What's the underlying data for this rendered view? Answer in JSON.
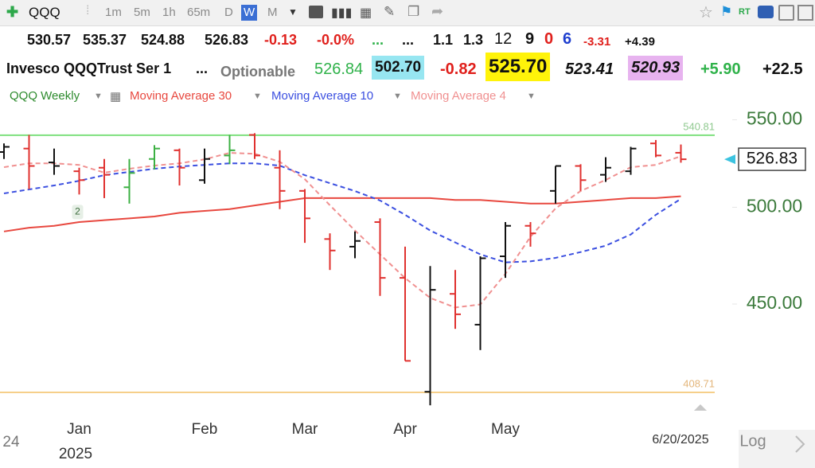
{
  "toolbar": {
    "symbol": "QQQ",
    "intervals": [
      "1m",
      "5m",
      "1h",
      "65m",
      "D",
      "W",
      "M"
    ]
  },
  "quote": {
    "row1": [
      "530.57",
      "535.37",
      "524.88",
      "526.83",
      "-0.13",
      "-0.0%",
      "...",
      "...",
      "1.1",
      "1.3",
      "12",
      "9",
      "0",
      "6",
      "-3.31",
      "+4.39"
    ],
    "row2": [
      "Invesco QQQTrust Ser 1",
      "...",
      "Optionable",
      "526.84",
      "502.70",
      "-0.82",
      "525.70",
      "523.41",
      "520.93",
      "+5.90",
      "+22.5"
    ]
  },
  "chart_data": {
    "type": "ohlc",
    "log_scale": true,
    "ylim": [
      401,
      555
    ],
    "yticks": [
      {
        "value": 450,
        "label": "450.00"
      },
      {
        "value": 500,
        "label": "500.00"
      },
      {
        "value": 550,
        "label": "550.00"
      }
    ],
    "categories": [
      null,
      null,
      null,
      "Jan",
      null,
      null,
      null,
      null,
      "Feb",
      null,
      null,
      null,
      "Mar",
      null,
      null,
      null,
      "Apr",
      null,
      null,
      null,
      "May",
      null,
      null,
      null,
      null,
      null,
      null,
      null
    ],
    "series": [
      {
        "name": "QQQ Weekly",
        "type": "ohlc",
        "color": "#2e8b2e",
        "open": [
          531,
          533,
          525,
          520,
          522,
          511,
          527,
          532,
          515,
          529,
          541,
          522,
          509,
          483,
          479,
          492,
          463,
          409,
          455,
          440,
          474,
          490,
          509,
          523,
          518,
          520,
          536,
          530.57
        ],
        "high": [
          536,
          541,
          533,
          522,
          527,
          527,
          535,
          533,
          533,
          541,
          542,
          532,
          510,
          486,
          487,
          494,
          479,
          469,
          467,
          474,
          492,
          492,
          523,
          524,
          528,
          534,
          538,
          535.37
        ],
        "low": [
          527,
          510,
          518,
          507,
          505,
          502,
          521,
          512,
          513,
          524,
          527,
          499,
          481,
          467,
          473,
          454,
          423,
          403,
          438,
          428,
          463,
          479,
          502,
          509,
          514,
          518,
          528,
          524.88
        ],
        "close": [
          534,
          523,
          523,
          515,
          518,
          519,
          533,
          522,
          527,
          532,
          529,
          509,
          494,
          477,
          482,
          463,
          423,
          457,
          445,
          473,
          490,
          486,
          523,
          515,
          522,
          533,
          529,
          526.83
        ],
        "colors": [
          "#111111",
          "#e0312f",
          "#111111",
          "#e0312f",
          "#e0312f",
          "#3cb043",
          "#3cb043",
          "#e0312f",
          "#111111",
          "#3cb043",
          "#e0312f",
          "#e0312f",
          "#e0312f",
          "#e0312f",
          "#111111",
          "#e0312f",
          "#e0312f",
          "#111111",
          "#e0312f",
          "#111111",
          "#111111",
          "#e0312f",
          "#111111",
          "#e0312f",
          "#111111",
          "#111111",
          "#e0312f",
          "#e0312f"
        ]
      },
      {
        "name": "Moving Average 30",
        "type": "line",
        "color": "#e8483f",
        "dash": false,
        "values": [
          487,
          489,
          490,
          492,
          493,
          494,
          495,
          497,
          498,
          499,
          501,
          503,
          505,
          505,
          505,
          505,
          505,
          505,
          504,
          504,
          503,
          502,
          502,
          503,
          504,
          505,
          505,
          506
        ]
      },
      {
        "name": "Moving Average 10",
        "type": "line",
        "color": "#3b4fe0",
        "dash": true,
        "values": [
          507.6,
          509.8,
          512,
          514.6,
          517.8,
          519.6,
          521.4,
          522.7,
          523.6,
          524.5,
          524.5,
          523.2,
          517.8,
          513.3,
          508.9,
          503.7,
          495.9,
          487.5,
          481.2,
          475,
          470.9,
          471.4,
          473.2,
          476.2,
          479.5,
          485.4,
          495.9,
          504.6
        ]
      },
      {
        "name": "Moving Average 4",
        "type": "line",
        "color": "#f09090",
        "dash": true,
        "values": [
          522.3,
          524.5,
          524.5,
          523.6,
          519.2,
          521.4,
          523.2,
          524.5,
          526.8,
          530.5,
          530,
          525.4,
          515.5,
          501.1,
          487.5,
          475,
          462.9,
          453,
          448.3,
          449.8,
          465,
          484.2,
          499.4,
          508.9,
          515.1,
          522.3,
          523.6,
          528.6
        ]
      }
    ],
    "hlines": [
      {
        "value": 540.81,
        "color": "#7fe07f",
        "text_color": "#8fc98f"
      },
      {
        "value": 408.71,
        "color": "#f6cf8a",
        "text_color": "#e3b57a"
      }
    ],
    "annotations": [
      {
        "text": "2"
      }
    ],
    "x_labels": {
      "start_year": "24",
      "year": "2025",
      "last_date": "6/20/2025"
    },
    "scale_label": "Log"
  }
}
